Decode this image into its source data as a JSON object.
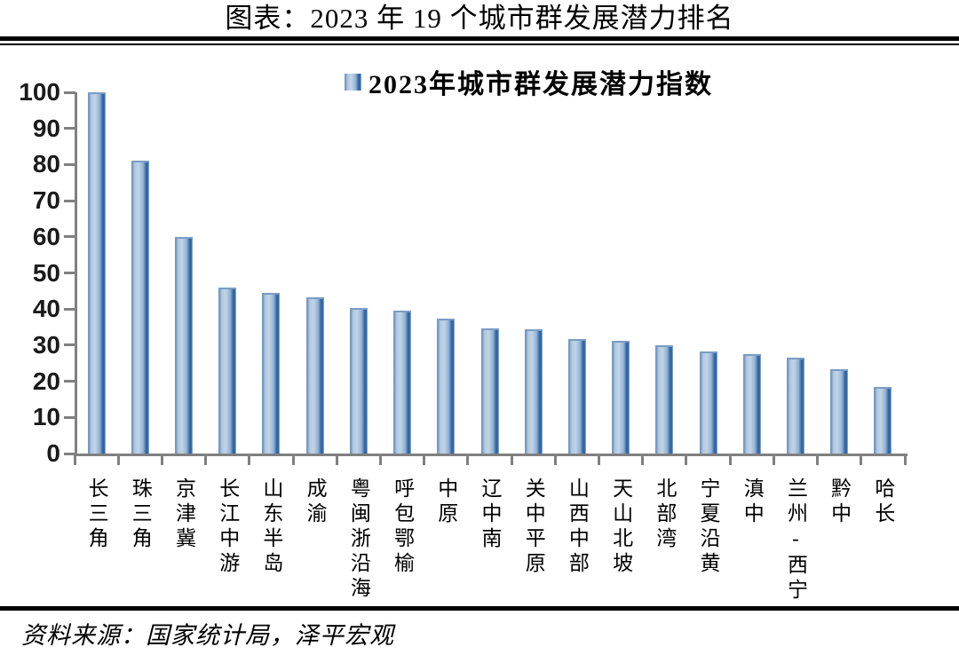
{
  "colors": {
    "bar_edge": "#7497BE",
    "bar_light": "#AFC7E0",
    "bar_lighter": "#C3D4E7",
    "bar_mid": "#92B3D3",
    "bar_dark": "#2F63A3",
    "bar_soft": "#A4BDD6",
    "bar_cap": "#7A9CC4",
    "axis": "#808080",
    "rule": "#000000",
    "text": "#000000"
  },
  "footer": {
    "source": "资料来源：国家统计局，泽平宏观"
  },
  "chart_data": {
    "type": "bar",
    "title": "图表：2023 年 19 个城市群发展潜力排名",
    "categories": [
      "长三角",
      "珠三角",
      "京津冀",
      "长江中游",
      "山东半岛",
      "成渝",
      "粤闽浙沿海",
      "呼包鄂榆",
      "中原",
      "辽中南",
      "关中平原",
      "山西中部",
      "天山北坡",
      "北部湾",
      "宁夏沿黄",
      "滇中",
      "兰州-西宁",
      "黔中",
      "哈长"
    ],
    "series": [
      {
        "name": "2023年城市群发展潜力指数",
        "values": [
          100,
          81,
          60,
          45.9,
          44.4,
          43.3,
          40.4,
          39.5,
          37.4,
          34.6,
          34.5,
          31.7,
          31.3,
          30,
          28.2,
          27.6,
          26.5,
          23.3,
          18.5
        ]
      }
    ],
    "xlabel": "",
    "ylabel": "",
    "ylim": [
      0,
      100
    ],
    "yticks": [
      0,
      10,
      20,
      30,
      40,
      50,
      60,
      70,
      80,
      90,
      100
    ],
    "grid": false,
    "legend_position": "top-center"
  }
}
